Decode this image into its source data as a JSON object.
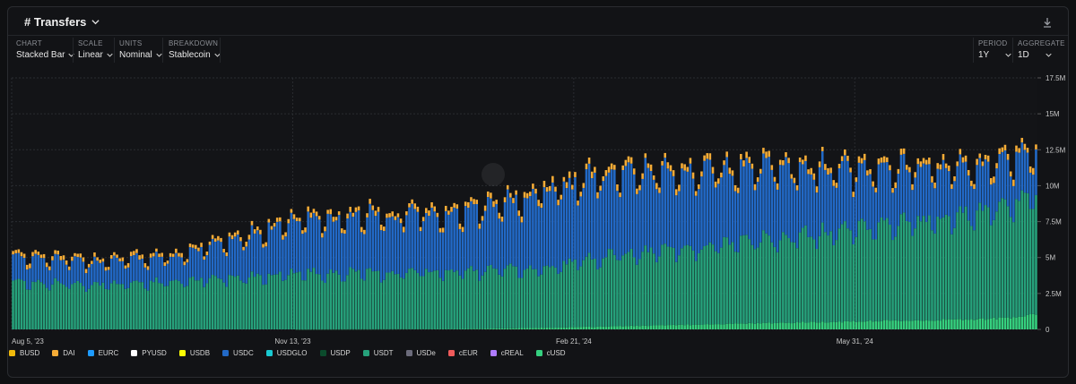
{
  "header": {
    "title": "# Transfers"
  },
  "controls": {
    "chart": {
      "label": "CHART",
      "value": "Stacked Bar"
    },
    "scale": {
      "label": "SCALE",
      "value": "Linear"
    },
    "units": {
      "label": "UNITS",
      "value": "Nominal"
    },
    "breakdown": {
      "label": "BREAKDOWN",
      "value": "Stablecoin"
    },
    "period": {
      "label": "PERIOD",
      "value": "1Y"
    },
    "aggregate": {
      "label": "AGGREGATE",
      "value": "1D"
    }
  },
  "colors": {
    "BUSD": "#f0b90b",
    "DAI": "#f5ac37",
    "EURC": "#1e9bff",
    "PYUSD": "#ffffff",
    "USDB": "#fcfc03",
    "USDC": "#2269c6",
    "USDGLO": "#19c9d1",
    "USDP": "#0b4b2c",
    "USDT": "#26a17b",
    "USDe": "#6b6b7b",
    "cEUR": "#ef5b5b",
    "cREAL": "#b07cff",
    "cUSD": "#35d07f"
  },
  "chart_data": {
    "type": "bar",
    "stacked": true,
    "title": "# Transfers",
    "xlabel": "",
    "ylabel": "",
    "ylim": [
      0,
      17500000
    ],
    "y_ticks": [
      0,
      2500000,
      5000000,
      7500000,
      10000000,
      12500000,
      15000000,
      17500000
    ],
    "y_tick_labels": [
      "0",
      "2.5M",
      "5M",
      "7.5M",
      "10M",
      "12.5M",
      "15M",
      "17.5M"
    ],
    "x_tick_labels": [
      "Aug 5, '23",
      "Nov 13, '23",
      "Feb 21, '24",
      "May 31, '24"
    ],
    "x_range": [
      "Aug 5, '23",
      "Aug 3, '24"
    ],
    "legend": [
      "BUSD",
      "DAI",
      "EURC",
      "PYUSD",
      "USDB",
      "USDC",
      "USDGLO",
      "USDP",
      "USDT",
      "USDe",
      "cEUR",
      "cREAL",
      "cUSD"
    ],
    "legend_position": "bottom",
    "num_days": 365,
    "series_anchors": {
      "day": [
        0,
        30,
        60,
        100,
        130,
        160,
        190,
        210,
        240,
        270,
        300,
        330,
        350,
        364
      ],
      "USDT": [
        3400000,
        3200000,
        3400000,
        4000000,
        4000000,
        4100000,
        4200000,
        5000000,
        5400000,
        6000000,
        6600000,
        7200000,
        7600000,
        8600000
      ],
      "USDC": [
        1800000,
        1600000,
        1800000,
        3700000,
        4000000,
        4100000,
        5300000,
        5700000,
        5500000,
        5000000,
        4200000,
        3600000,
        3200000,
        3000000
      ],
      "DAI": [
        280000,
        260000,
        260000,
        300000,
        320000,
        340000,
        380000,
        380000,
        380000,
        380000,
        380000,
        380000,
        380000,
        400000
      ],
      "cUSD": [
        0,
        0,
        0,
        0,
        10000,
        30000,
        120000,
        200000,
        320000,
        450000,
        560000,
        650000,
        760000,
        1000000
      ]
    }
  }
}
